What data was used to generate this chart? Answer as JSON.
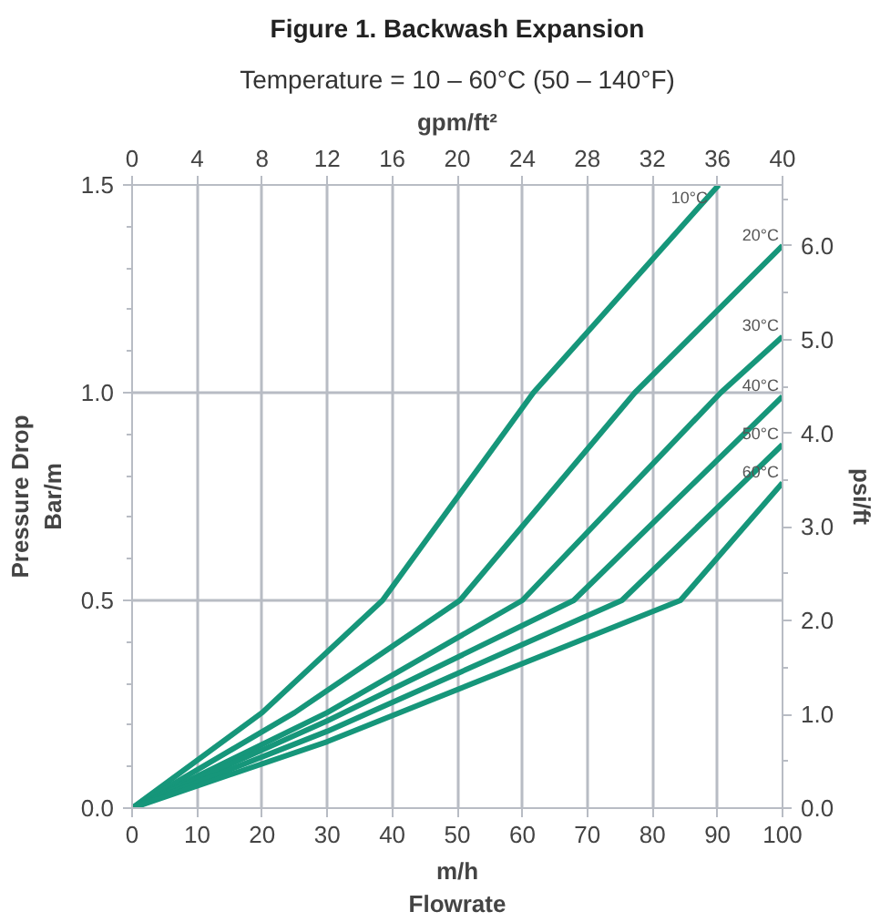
{
  "chart_data": {
    "type": "line",
    "title": "Figure 1. Backwash Expansion",
    "subtitle": "Temperature = 10 – 60°C (50 – 140°F)",
    "xlabel": "m/h\nFlowrate",
    "ylabel": "Pressure Drop\nBar/m",
    "y2label": "psi/ft",
    "x2label": "gpm/ft²",
    "xlim": [
      0,
      100
    ],
    "xticks": [
      0,
      10,
      20,
      30,
      40,
      50,
      60,
      70,
      80,
      90,
      100
    ],
    "x2lim": [
      0,
      40
    ],
    "x2ticks": [
      0,
      4,
      8,
      12,
      16,
      20,
      24,
      28,
      32,
      36,
      40
    ],
    "ylim": [
      0,
      1.5
    ],
    "yticks": [
      {
        "value": 0,
        "label": "0.0"
      },
      {
        "value": 0.1,
        "label": null
      },
      {
        "value": 0.2,
        "label": null
      },
      {
        "value": 0.3,
        "label": null
      },
      {
        "value": 0.4,
        "label": null
      },
      {
        "value": 0.5,
        "label": "0.5"
      },
      {
        "value": 0.6,
        "label": null
      },
      {
        "value": 0.7,
        "label": null
      },
      {
        "value": 0.8,
        "label": null
      },
      {
        "value": 0.9,
        "label": null
      },
      {
        "value": 1.0,
        "label": "1.0"
      },
      {
        "value": 1.1,
        "label": null
      },
      {
        "value": 1.2,
        "label": null
      },
      {
        "value": 1.3,
        "label": null
      },
      {
        "value": 1.4,
        "label": null
      },
      {
        "value": 1.5,
        "label": "1.5"
      }
    ],
    "y2lim": [
      0,
      6.65
    ],
    "y2ticks": [
      {
        "value": 0,
        "label": "0.0"
      },
      {
        "value": 0.5,
        "label": null
      },
      {
        "value": 1,
        "label": "1.0"
      },
      {
        "value": 1.5,
        "label": null
      },
      {
        "value": 2,
        "label": "2.0"
      },
      {
        "value": 2.5,
        "label": null
      },
      {
        "value": 3,
        "label": "3.0"
      },
      {
        "value": 3.5,
        "label": null
      },
      {
        "value": 4,
        "label": "4.0"
      },
      {
        "value": 4.5,
        "label": null
      },
      {
        "value": 5,
        "label": "5.0"
      },
      {
        "value": 5.5,
        "label": null
      },
      {
        "value": 6,
        "label": "6.0"
      },
      {
        "value": 6.5,
        "label": null
      }
    ],
    "grid": true,
    "marker": "none",
    "line_style": "solid",
    "series": [
      {
        "color": "#16967a",
        "x": [
          0,
          20,
          38.5,
          61.7,
          90.2
        ],
        "values": [
          0,
          0.23,
          0.5,
          1.0,
          1.5
        ]
      },
      {
        "color": "#16967a",
        "x": [
          0,
          25,
          50.4,
          77.3,
          100
        ],
        "values": [
          0,
          0.23,
          0.5,
          1.0,
          1.354
        ]
      },
      {
        "color": "#16967a",
        "x": [
          0,
          30,
          60,
          90.5,
          100
        ],
        "values": [
          0,
          0.23,
          0.5,
          1.0,
          1.135
        ]
      },
      {
        "color": "#16967a",
        "x": [
          0,
          30,
          67.9,
          100
        ],
        "values": [
          0,
          0.21,
          0.5,
          0.991
        ]
      },
      {
        "color": "#16967a",
        "x": [
          0,
          30,
          75.3,
          100
        ],
        "values": [
          0,
          0.185,
          0.5,
          0.875
        ]
      },
      {
        "color": "#16967a",
        "x": [
          0,
          30,
          84.3,
          100
        ],
        "values": [
          0,
          0.16,
          0.5,
          0.783
        ]
      }
    ],
    "annotations": [
      "10°C",
      "20°C",
      "30°C",
      "40°C",
      "50°C",
      "60°C"
    ]
  }
}
